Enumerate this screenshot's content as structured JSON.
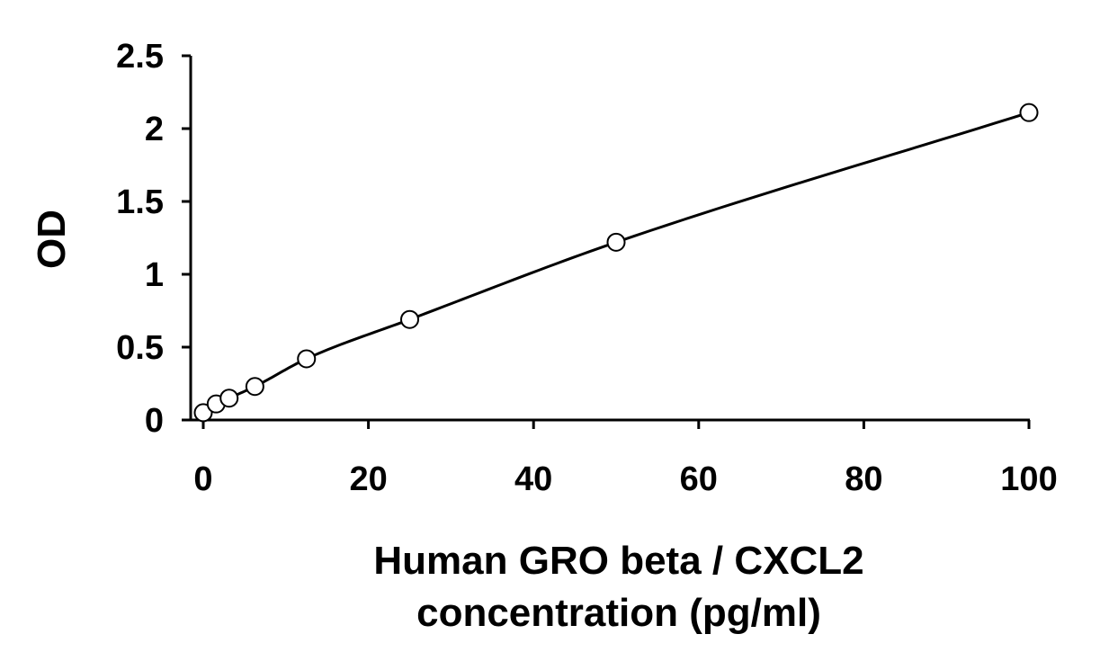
{
  "chart_data": {
    "type": "scatter",
    "title": "",
    "xlabel_lines": [
      "Human GRO beta / CXCL2",
      "concentration (pg/ml)"
    ],
    "ylabel": "OD",
    "xlim": [
      0,
      100
    ],
    "ylim": [
      0,
      2.5
    ],
    "x_ticks": [
      "0",
      "20",
      "40",
      "60",
      "80",
      "100"
    ],
    "y_ticks": [
      "0",
      "0.5",
      "1",
      "1.5",
      "2",
      "2.5"
    ],
    "grid": false,
    "legend": "none",
    "series": [
      {
        "x": [
          0,
          1.56,
          3.13,
          6.25,
          12.5,
          25,
          50,
          100
        ],
        "y": [
          0.05,
          0.11,
          0.15,
          0.23,
          0.42,
          0.69,
          1.22,
          2.11
        ],
        "marker": "open-circle",
        "fit_line": "smooth-curve"
      }
    ],
    "colors": {
      "line": "#000000",
      "marker_stroke": "#000000",
      "marker_fill": "#ffffff"
    }
  }
}
